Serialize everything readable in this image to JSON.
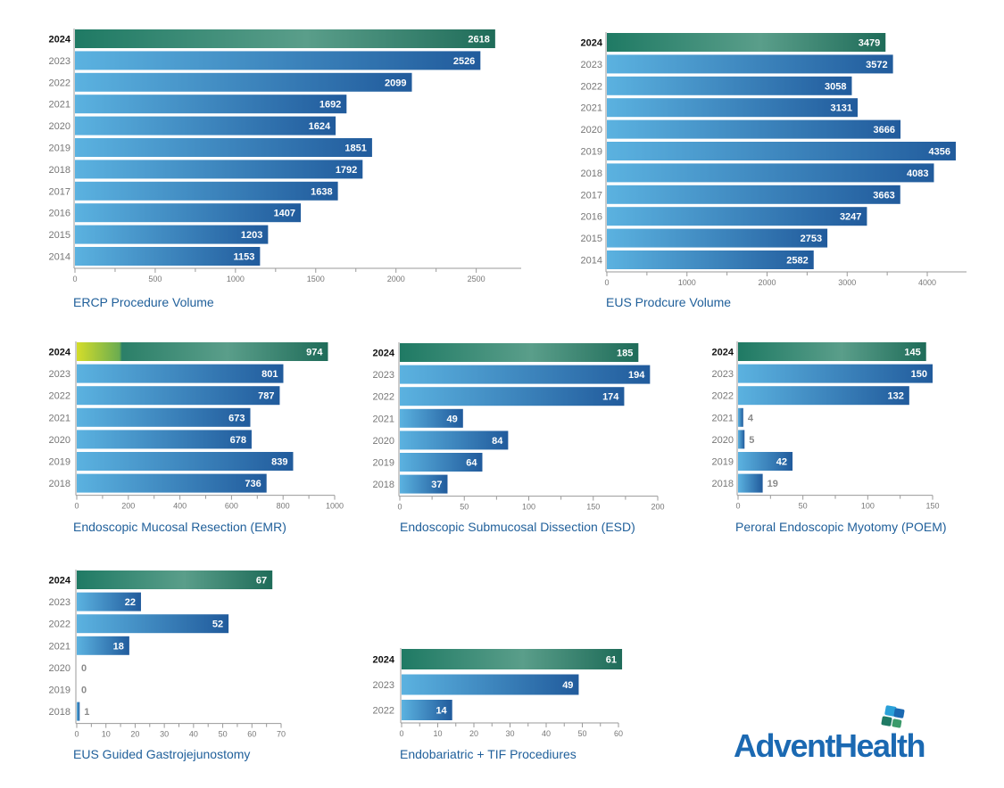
{
  "brand": {
    "name": "AdventHealth",
    "primary_color": "#1b69b2",
    "accent_green": "#1f7a64"
  },
  "colors": {
    "current_start": "#1f7a64",
    "current_mid": "#5a9e8a",
    "current_end": "#1f6c59",
    "past_start": "#5bb2e0",
    "past_end": "#215b9c",
    "emr_current_start": "#d4dd2a",
    "emr_current_mid": "#6aac50",
    "axis": "#9a9a9a",
    "tick_label": "#777777"
  },
  "chart_data": [
    {
      "id": "ercp",
      "type": "bar",
      "orientation": "horizontal",
      "title": "ERCP Procedure Volume",
      "categories": [
        "2024",
        "2023",
        "2022",
        "2021",
        "2020",
        "2019",
        "2018",
        "2017",
        "2016",
        "2015",
        "2014"
      ],
      "values": [
        2618,
        2526,
        2099,
        1692,
        1624,
        1851,
        1792,
        1638,
        1407,
        1203,
        1153
      ],
      "xlim": [
        0,
        2780
      ],
      "ticks": [
        0,
        500,
        1000,
        1500,
        2000,
        2500
      ],
      "highlight": "2024"
    },
    {
      "id": "eus",
      "type": "bar",
      "orientation": "horizontal",
      "title": "EUS Prodcure Volume",
      "categories": [
        "2024",
        "2023",
        "2022",
        "2021",
        "2020",
        "2019",
        "2018",
        "2017",
        "2016",
        "2015",
        "2014"
      ],
      "values": [
        3479,
        3572,
        3058,
        3131,
        3666,
        4356,
        4083,
        3663,
        3247,
        2753,
        2582
      ],
      "xlim": [
        0,
        4490
      ],
      "ticks": [
        0,
        1000,
        2000,
        3000,
        4000
      ],
      "highlight": "2024"
    },
    {
      "id": "emr",
      "type": "bar",
      "orientation": "horizontal",
      "title": "Endoscopic Mucosal Resection (EMR)",
      "categories": [
        "2024",
        "2023",
        "2022",
        "2021",
        "2020",
        "2019",
        "2018"
      ],
      "values": [
        974,
        801,
        787,
        673,
        678,
        839,
        736
      ],
      "xlim": [
        0,
        1000
      ],
      "ticks": [
        0,
        200,
        400,
        600,
        800,
        1000
      ],
      "highlight": "2024"
    },
    {
      "id": "esd",
      "type": "bar",
      "orientation": "horizontal",
      "title": "Endoscopic Submucosal Dissection (ESD)",
      "categories": [
        "2024",
        "2023",
        "2022",
        "2021",
        "2020",
        "2019",
        "2018"
      ],
      "values": [
        185,
        194,
        174,
        49,
        84,
        64,
        37
      ],
      "xlim": [
        0,
        200
      ],
      "ticks": [
        0,
        50,
        100,
        150,
        200
      ],
      "highlight": "2024"
    },
    {
      "id": "poem",
      "type": "bar",
      "orientation": "horizontal",
      "title": "Peroral Endoscopic Myotomy (POEM)",
      "categories": [
        "2024",
        "2023",
        "2022",
        "2021",
        "2020",
        "2019",
        "2018"
      ],
      "values": [
        145,
        150,
        132,
        4,
        5,
        42,
        19
      ],
      "xlim": [
        0,
        150
      ],
      "ticks": [
        0,
        50,
        100,
        150
      ],
      "highlight": "2024"
    },
    {
      "id": "gj",
      "type": "bar",
      "orientation": "horizontal",
      "title": "EUS Guided Gastrojejunostomy",
      "categories": [
        "2024",
        "2023",
        "2022",
        "2021",
        "2020",
        "2019",
        "2018"
      ],
      "values": [
        67,
        22,
        52,
        18,
        0,
        0,
        1
      ],
      "xlim": [
        0,
        70
      ],
      "ticks": [
        0,
        10,
        20,
        30,
        40,
        50,
        60,
        70
      ],
      "highlight": "2024"
    },
    {
      "id": "tif",
      "type": "bar",
      "orientation": "horizontal",
      "title": "Endobariatric + TIF Procediures",
      "categories": [
        "2024",
        "2023",
        "2022"
      ],
      "values": [
        61,
        49,
        14
      ],
      "xlim": [
        0,
        60
      ],
      "ticks": [
        0,
        10,
        20,
        30,
        40,
        50,
        60
      ],
      "highlight": "2024"
    }
  ]
}
